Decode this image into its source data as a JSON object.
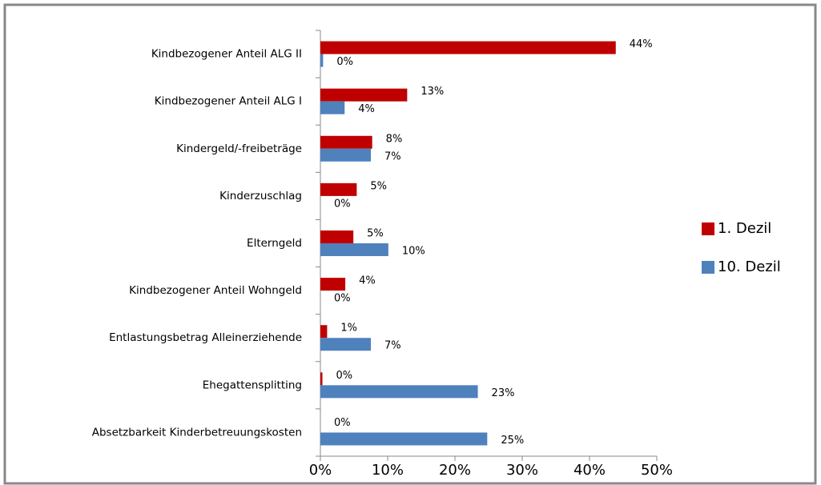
{
  "chart_data": {
    "type": "bar",
    "orientation": "horizontal",
    "categories": [
      "Kindbezogener Anteil ALG II",
      "Kindbezogener Anteil ALG I",
      "Kindergeld/-freibeträge",
      "Kinderzuschlag",
      "Elterngeld",
      "Kindbezogener Anteil Wohngeld",
      "Entlastungsbetrag  Alleinerziehende",
      "Ehegattensplitting",
      "Absetzbarkeit Kinderbetreuungskosten"
    ],
    "series": [
      {
        "name": "1. Dezil",
        "color": "#c00000",
        "values": [
          43.9,
          12.9,
          7.7,
          5.4,
          4.9,
          3.7,
          1.0,
          0.3,
          0
        ],
        "value_labels": [
          "44%",
          "13%",
          "8%",
          "5%",
          "5%",
          "4%",
          "1%",
          "0%",
          "0%"
        ]
      },
      {
        "name": "10. Dezil",
        "color": "#4f81bd",
        "values": [
          0.4,
          3.6,
          7.5,
          0,
          10.1,
          0,
          7.5,
          23.4,
          24.8
        ],
        "value_labels": [
          "0%",
          "4%",
          "7%",
          "0%",
          "10%",
          "0%",
          "7%",
          "23%",
          "25%"
        ]
      }
    ],
    "xlim": [
      0,
      50
    ],
    "xticks": [
      {
        "value": 0,
        "label": "0%"
      },
      {
        "value": 10,
        "label": "10%"
      },
      {
        "value": 20,
        "label": "20%"
      },
      {
        "value": 30,
        "label": "30%"
      },
      {
        "value": 40,
        "label": "40%"
      },
      {
        "value": 50,
        "label": "50%"
      }
    ],
    "legend": "right",
    "grid": false
  }
}
